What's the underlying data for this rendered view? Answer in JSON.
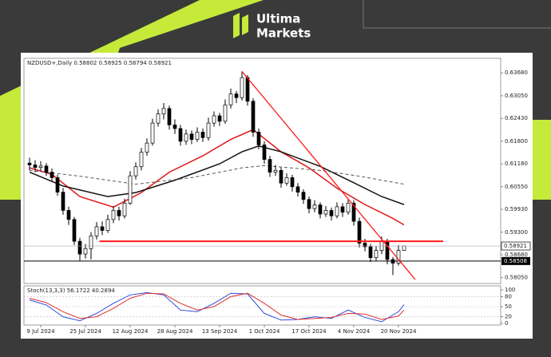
{
  "logo": {
    "line1": "Ultima",
    "line2": "Markets"
  },
  "chart_data": {
    "type": "candlestick",
    "symbol": "NZDUSD+,Daily",
    "up_color": "#ffffff",
    "down_color": "#000000",
    "ohlc": [
      [
        0.612,
        0.6135,
        0.61,
        0.6115
      ],
      [
        0.6115,
        0.6128,
        0.6095,
        0.6108
      ],
      [
        0.6108,
        0.6125,
        0.6098,
        0.6112
      ],
      [
        0.6112,
        0.612,
        0.6085,
        0.6095
      ],
      [
        0.6095,
        0.6105,
        0.6068,
        0.608
      ],
      [
        0.608,
        0.6088,
        0.603,
        0.604
      ],
      [
        0.604,
        0.6052,
        0.5978,
        0.599
      ],
      [
        0.599,
        0.6,
        0.595,
        0.5965
      ],
      [
        0.5965,
        0.5972,
        0.5895,
        0.5905
      ],
      [
        0.5905,
        0.5915,
        0.5852,
        0.587
      ],
      [
        0.587,
        0.5898,
        0.5858,
        0.5885
      ],
      [
        0.5885,
        0.593,
        0.5855,
        0.592
      ],
      [
        0.592,
        0.5958,
        0.591,
        0.5945
      ],
      [
        0.5945,
        0.596,
        0.5922,
        0.5935
      ],
      [
        0.5935,
        0.5978,
        0.5928,
        0.5965
      ],
      [
        0.5965,
        0.6002,
        0.5955,
        0.599
      ],
      [
        0.599,
        0.6,
        0.5962,
        0.5975
      ],
      [
        0.5975,
        0.6022,
        0.5968,
        0.601
      ],
      [
        0.601,
        0.6098,
        0.6005,
        0.6085
      ],
      [
        0.6085,
        0.6122,
        0.6075,
        0.611
      ],
      [
        0.611,
        0.6162,
        0.61,
        0.615
      ],
      [
        0.615,
        0.6188,
        0.614,
        0.6175
      ],
      [
        0.6175,
        0.6242,
        0.6168,
        0.623
      ],
      [
        0.623,
        0.6268,
        0.622,
        0.6255
      ],
      [
        0.6255,
        0.6285,
        0.624,
        0.627
      ],
      [
        0.627,
        0.6278,
        0.6212,
        0.6225
      ],
      [
        0.6225,
        0.624,
        0.62,
        0.6215
      ],
      [
        0.6215,
        0.6225,
        0.6168,
        0.618
      ],
      [
        0.618,
        0.6212,
        0.617,
        0.62
      ],
      [
        0.62,
        0.621,
        0.6172,
        0.6185
      ],
      [
        0.6185,
        0.6218,
        0.6178,
        0.6205
      ],
      [
        0.6205,
        0.6215,
        0.6178,
        0.619
      ],
      [
        0.619,
        0.6245,
        0.6182,
        0.623
      ],
      [
        0.623,
        0.6262,
        0.622,
        0.625
      ],
      [
        0.625,
        0.6258,
        0.6222,
        0.6235
      ],
      [
        0.6235,
        0.6295,
        0.6228,
        0.628
      ],
      [
        0.628,
        0.6325,
        0.627,
        0.631
      ],
      [
        0.631,
        0.6318,
        0.6285,
        0.63
      ],
      [
        0.63,
        0.6372,
        0.6292,
        0.6355
      ],
      [
        0.6355,
        0.6362,
        0.6278,
        0.629
      ],
      [
        0.629,
        0.6298,
        0.6192,
        0.6205
      ],
      [
        0.6205,
        0.6215,
        0.6158,
        0.617
      ],
      [
        0.617,
        0.618,
        0.6118,
        0.613
      ],
      [
        0.613,
        0.614,
        0.6082,
        0.6095
      ],
      [
        0.6095,
        0.6115,
        0.6085,
        0.61
      ],
      [
        0.61,
        0.6108,
        0.6052,
        0.6065
      ],
      [
        0.6065,
        0.6092,
        0.6058,
        0.608
      ],
      [
        0.608,
        0.6088,
        0.6042,
        0.6055
      ],
      [
        0.6055,
        0.6065,
        0.6028,
        0.604
      ],
      [
        0.604,
        0.6048,
        0.6008,
        0.602
      ],
      [
        0.602,
        0.6028,
        0.5982,
        0.5995
      ],
      [
        0.5995,
        0.6018,
        0.5985,
        0.6005
      ],
      [
        0.6005,
        0.6012,
        0.5968,
        0.598
      ],
      [
        0.598,
        0.6002,
        0.5972,
        0.599
      ],
      [
        0.599,
        0.5998,
        0.5962,
        0.5975
      ],
      [
        0.5975,
        0.6012,
        0.5968,
        0.6
      ],
      [
        0.6,
        0.601,
        0.5972,
        0.5985
      ],
      [
        0.5985,
        0.6022,
        0.5978,
        0.601
      ],
      [
        0.601,
        0.6018,
        0.5948,
        0.596
      ],
      [
        0.596,
        0.597,
        0.5888,
        0.59
      ],
      [
        0.59,
        0.5912,
        0.5878,
        0.589
      ],
      [
        0.589,
        0.5898,
        0.5848,
        0.586
      ],
      [
        0.586,
        0.5892,
        0.5852,
        0.588
      ],
      [
        0.588,
        0.5918,
        0.587,
        0.5905
      ],
      [
        0.5905,
        0.5912,
        0.5842,
        0.5855
      ],
      [
        0.5855,
        0.5862,
        0.5812,
        0.5845
      ],
      [
        0.5845,
        0.5895,
        0.5838,
        0.588
      ],
      [
        0.58802,
        0.58925,
        0.58794,
        0.58921
      ]
    ],
    "categories": [
      null,
      null,
      "9 Jul 2024",
      null,
      null,
      null,
      null,
      null,
      null,
      null,
      "25 Jul 2024",
      null,
      null,
      null,
      null,
      null,
      null,
      null,
      "12 Aug 2024",
      null,
      null,
      null,
      null,
      null,
      null,
      null,
      "28 Aug 2024",
      null,
      null,
      null,
      null,
      null,
      null,
      null,
      "13 Sep 2024",
      null,
      null,
      null,
      null,
      null,
      null,
      null,
      "1 Oct 2024",
      null,
      null,
      null,
      null,
      null,
      null,
      null,
      "17 Oct 2024",
      null,
      null,
      null,
      null,
      null,
      null,
      null,
      "4 Nov 2024",
      null,
      null,
      null,
      null,
      null,
      null,
      null,
      "20 Nov 2024",
      null
    ],
    "ylim": [
      0.5789,
      0.6408
    ],
    "yticks": [
      {
        "value": 0.5805,
        "label": "0.58050"
      },
      {
        "value": 0.5868,
        "label": "0.58680"
      },
      {
        "value": 0.593,
        "label": "0.59300"
      },
      {
        "value": 0.5993,
        "label": "0.59930"
      },
      {
        "value": 0.6055,
        "label": "0.60550"
      },
      {
        "value": 0.6118,
        "label": "0.61180"
      },
      {
        "value": 0.618,
        "label": "0.61800"
      },
      {
        "value": 0.6243,
        "label": "0.62430"
      },
      {
        "value": 0.6305,
        "label": "0.63050"
      },
      {
        "value": 0.6368,
        "label": "0.63680"
      }
    ],
    "support": {
      "value": 0.58508,
      "color": "#000000"
    },
    "resistance": {
      "value": 0.5905,
      "x": [
        12.5,
        74
      ],
      "color": "#ff1a1a"
    },
    "trendline": {
      "x": [
        38,
        69
      ],
      "values": [
        0.6372,
        0.58
      ],
      "color": "#ff1a1a"
    },
    "moving_averages": [
      {
        "color": "#e01818",
        "dashed": false,
        "x": [
          0,
          4,
          9,
          15,
          20,
          25,
          31,
          36,
          40,
          45,
          50,
          55,
          60,
          65,
          67
        ],
        "values": [
          0.6107,
          0.6089,
          0.6028,
          0.5999,
          0.6039,
          0.6095,
          0.614,
          0.6185,
          0.6212,
          0.6151,
          0.6107,
          0.6051,
          0.6006,
          0.5968,
          0.595
        ]
      },
      {
        "color": "#111111",
        "dashed": false,
        "x": [
          0,
          6,
          14,
          19,
          26,
          34,
          38,
          41,
          45,
          52,
          58,
          63,
          67
        ],
        "values": [
          0.6095,
          0.6057,
          0.6028,
          0.6039,
          0.6073,
          0.6118,
          0.6151,
          0.6167,
          0.6151,
          0.6111,
          0.6066,
          0.6028,
          0.6006
        ]
      },
      {
        "color": "#555555",
        "dashed": true,
        "x": [
          0,
          9,
          19,
          29,
          38,
          42,
          52,
          59,
          67
        ],
        "values": [
          0.61,
          0.6084,
          0.6062,
          0.608,
          0.6107,
          0.6113,
          0.61,
          0.6084,
          0.6062
        ]
      }
    ],
    "indicator": {
      "label": "Stoch(13,3,3)",
      "ylim": [
        0,
        100
      ],
      "yticks": [
        0,
        20,
        50,
        80,
        100
      ],
      "series": [
        {
          "color": "#2a4be0",
          "x": [
            0,
            3,
            6,
            9,
            12,
            15,
            18,
            21,
            24,
            27,
            30,
            33,
            36,
            39,
            42,
            45,
            48,
            51,
            54,
            57,
            60,
            63,
            66,
            67
          ],
          "values": [
            70,
            55,
            20,
            8,
            30,
            60,
            85,
            92,
            85,
            40,
            35,
            60,
            90,
            88,
            30,
            10,
            12,
            20,
            15,
            40,
            18,
            5,
            35,
            56.1722
          ]
        },
        {
          "color": "#e03030",
          "x": [
            0,
            3,
            6,
            9,
            12,
            15,
            18,
            21,
            24,
            27,
            30,
            33,
            36,
            39,
            42,
            45,
            48,
            51,
            54,
            57,
            60,
            63,
            66,
            67
          ],
          "values": [
            75,
            62,
            35,
            15,
            20,
            45,
            75,
            90,
            88,
            60,
            40,
            50,
            80,
            90,
            60,
            25,
            12,
            15,
            18,
            30,
            28,
            12,
            22,
            40.2894
          ]
        }
      ]
    }
  }
}
